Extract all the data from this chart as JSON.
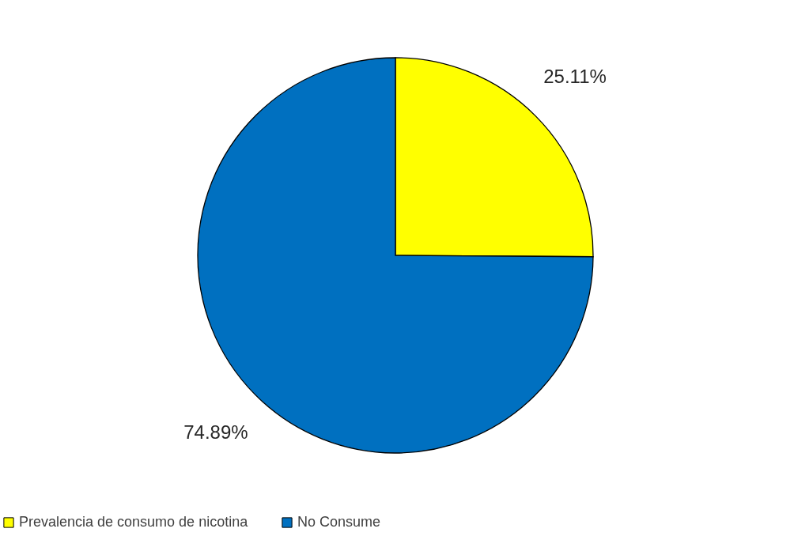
{
  "chart_data": {
    "type": "pie",
    "categories": [
      "Prevalencia de consumo de nicotina",
      "No Consume"
    ],
    "values": [
      25.11,
      74.89
    ],
    "colors": [
      "#ffff00",
      "#0070c0"
    ],
    "value_labels": [
      "25.11%",
      "74.89%"
    ],
    "legend": "bottom"
  }
}
